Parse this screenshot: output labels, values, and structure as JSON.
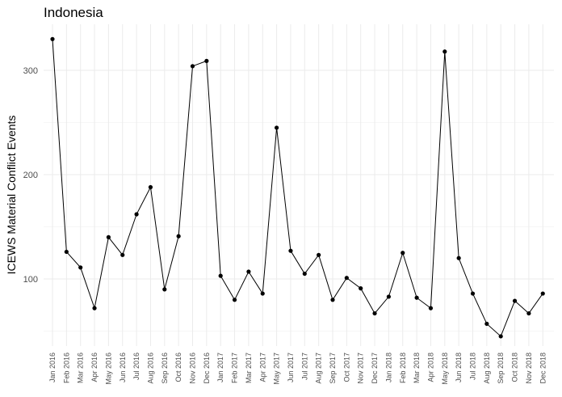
{
  "chart_data": {
    "type": "line",
    "title": "Indonesia",
    "xlabel": "",
    "ylabel": "ICEWS Material Conflict Events",
    "categories": [
      "Jan 2016",
      "Feb 2016",
      "Mar 2016",
      "Apr 2016",
      "May 2016",
      "Jun 2016",
      "Jul 2016",
      "Aug 2016",
      "Sep 2016",
      "Oct 2016",
      "Nov 2016",
      "Dec 2016",
      "Jan 2017",
      "Feb 2017",
      "Mar 2017",
      "Apr 2017",
      "May 2017",
      "Jun 2017",
      "Jul 2017",
      "Aug 2017",
      "Sep 2017",
      "Oct 2017",
      "Nov 2017",
      "Dec 2017",
      "Jan 2018",
      "Feb 2018",
      "Mar 2018",
      "Apr 2018",
      "May 2018",
      "Jun 2018",
      "Jul 2018",
      "Aug 2018",
      "Sep 2018",
      "Oct 2018",
      "Nov 2018",
      "Dec 2018"
    ],
    "series": [
      {
        "values": [
          330,
          126,
          111,
          72,
          140,
          123,
          162,
          188,
          90,
          141,
          304,
          309,
          103,
          80,
          107,
          86,
          245,
          127,
          105,
          123,
          80,
          101,
          91,
          67,
          83,
          125,
          82,
          72,
          318,
          120,
          86,
          57,
          45,
          79,
          67,
          86
        ]
      }
    ],
    "yticks": [
      100,
      200,
      300
    ],
    "ylim": [
      27,
      345
    ],
    "grid": true,
    "legend": "none"
  }
}
